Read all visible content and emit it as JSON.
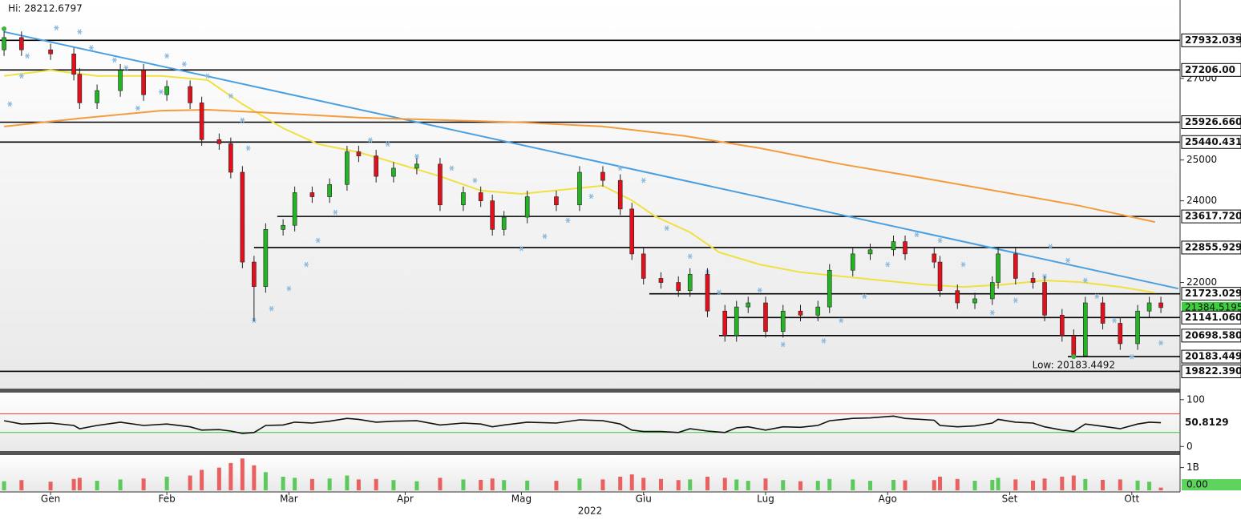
{
  "chart_data": [
    {
      "type": "candlestick",
      "x": [
        0,
        3,
        8,
        12,
        13,
        16,
        20,
        24,
        28,
        32,
        34,
        37,
        39,
        41,
        43,
        45,
        48,
        50,
        53,
        56,
        59,
        61,
        64,
        67,
        71,
        75,
        79,
        82,
        84,
        86,
        90,
        95,
        99,
        103,
        106,
        108,
        110,
        113,
        116,
        118,
        121,
        124,
        126,
        128,
        131,
        134,
        137,
        140,
        142,
        146,
        149,
        153,
        155,
        160,
        161,
        164,
        167,
        170,
        171,
        174,
        177,
        179,
        182,
        184,
        186,
        189,
        192,
        195,
        197,
        199
      ],
      "open": [
        27700,
        28000,
        27700,
        27600,
        27100,
        26400,
        26700,
        27200,
        26600,
        26800,
        26400,
        25500,
        25400,
        24700,
        22500,
        21900,
        23300,
        23400,
        24200,
        24100,
        24400,
        25200,
        25100,
        24600,
        24800,
        24900,
        23900,
        24200,
        24000,
        23300,
        23600,
        24100,
        23900,
        24700,
        24500,
        23800,
        22700,
        22100,
        22000,
        21800,
        22200,
        21300,
        20700,
        21400,
        21500,
        20800,
        21300,
        21200,
        21400,
        22300,
        22700,
        22800,
        23000,
        22700,
        22500,
        21800,
        21500,
        21600,
        22000,
        22700,
        22100,
        22000,
        21200,
        20700,
        20200,
        21500,
        21000,
        20500,
        21300,
        21500
      ],
      "high": [
        28212.6797,
        28150,
        27850,
        27750,
        27250,
        26850,
        27350,
        27350,
        26950,
        26950,
        26550,
        25650,
        25550,
        24850,
        22650,
        23450,
        23550,
        24350,
        24350,
        24550,
        25350,
        25350,
        25250,
        24950,
        25050,
        25050,
        24350,
        24350,
        24150,
        23750,
        24250,
        24250,
        24850,
        24850,
        24650,
        23950,
        22850,
        22250,
        22150,
        22350,
        22350,
        21450,
        21550,
        21650,
        21650,
        21450,
        21450,
        21550,
        22450,
        22850,
        22950,
        23150,
        23150,
        22850,
        22650,
        21950,
        21750,
        22150,
        22850,
        22850,
        22250,
        22150,
        21350,
        20850,
        21650,
        21650,
        21150,
        21450,
        21650,
        21650
      ],
      "low": [
        27550,
        27550,
        27450,
        26950,
        26250,
        26250,
        26550,
        26450,
        26450,
        26250,
        25350,
        25250,
        24550,
        22350,
        21050,
        21750,
        23150,
        23250,
        23950,
        23950,
        24250,
        24950,
        24450,
        24450,
        24650,
        23750,
        23750,
        23850,
        23150,
        23150,
        23450,
        23750,
        23750,
        24350,
        23650,
        22550,
        21950,
        21850,
        21650,
        21650,
        21150,
        20550,
        20550,
        21250,
        20650,
        20650,
        21050,
        21050,
        21250,
        22150,
        22550,
        22650,
        22550,
        22350,
        21650,
        21350,
        21350,
        21450,
        21850,
        21950,
        21850,
        21050,
        20550,
        20183.4492,
        20200,
        20850,
        20350,
        20350,
        21150,
        21250
      ],
      "close": [
        28000,
        27700,
        27600,
        27100,
        26400,
        26700,
        27200,
        26600,
        26800,
        26400,
        25500,
        25400,
        24700,
        22500,
        21900,
        23300,
        23400,
        24200,
        24100,
        24400,
        25200,
        25100,
        24600,
        24800,
        24900,
        23900,
        24200,
        24000,
        23300,
        23600,
        24100,
        23900,
        24700,
        24500,
        23800,
        22700,
        22100,
        22000,
        21800,
        22200,
        21300,
        20700,
        21400,
        21500,
        20800,
        21300,
        21200,
        21400,
        22300,
        22700,
        22800,
        23000,
        22700,
        22500,
        21800,
        21500,
        21600,
        22000,
        22700,
        22100,
        22000,
        21200,
        20700,
        20200,
        21500,
        21000,
        20500,
        21300,
        21500,
        21384.5195
      ],
      "up_color": "#22b422",
      "down_color": "#e3101b",
      "xlim": [
        -0.7,
        202.3
      ],
      "ylim": [
        19400,
        28920
      ],
      "yticks": [
        27000,
        25000,
        24000,
        22000
      ],
      "levels": [
        {
          "value": 27932.0391
        },
        {
          "value": 27206,
          "label": "27206.00"
        },
        {
          "value": 25926.6602
        },
        {
          "value": 25440.4316
        },
        {
          "value": 23617.7207,
          "x0": 47
        },
        {
          "value": 22855.9297,
          "x0": 43
        },
        {
          "value": 21723.0293,
          "x0": 111
        },
        {
          "value": 21141.0605,
          "x0": 124
        },
        {
          "value": 20698.5801,
          "x0": 123
        },
        {
          "value": 20183.4492,
          "x0": 183
        },
        {
          "value": 19822.3906
        }
      ],
      "lines": [
        {
          "color": "#4a9fe0",
          "x": [
            0,
            202
          ],
          "values": [
            28140,
            21850
          ]
        },
        {
          "color": "#f0e040",
          "x": [
            0,
            8,
            16,
            27,
            35,
            41,
            48,
            54,
            61,
            68,
            75,
            82,
            89,
            96,
            103,
            108,
            112,
            118,
            123,
            130,
            137,
            144,
            151,
            158,
            165,
            172,
            179,
            185,
            192,
            198
          ],
          "values": [
            27060,
            27200,
            27060,
            27060,
            26960,
            26370,
            25780,
            25390,
            25190,
            24900,
            24600,
            24250,
            24170,
            24270,
            24370,
            24010,
            23620,
            23230,
            22740,
            22440,
            22250,
            22150,
            22050,
            21950,
            21890,
            21950,
            22050,
            22010,
            21890,
            21750
          ]
        },
        {
          "color": "#f39c3c",
          "x": [
            0,
            13,
            27,
            35,
            48,
            61,
            75,
            89,
            103,
            117,
            130,
            144,
            158,
            172,
            185,
            198
          ],
          "values": [
            25820,
            26020,
            26210,
            26230,
            26140,
            26040,
            25980,
            25920,
            25820,
            25590,
            25290,
            24900,
            24560,
            24210,
            23880,
            23480
          ]
        }
      ],
      "sar": {
        "color": "#8ab8dc",
        "x": [
          1,
          3,
          4,
          9,
          13,
          15,
          19,
          21,
          23,
          27,
          28,
          31,
          35,
          39,
          41,
          42,
          43,
          46,
          49,
          52,
          54,
          57,
          59,
          63,
          66,
          71,
          77,
          81,
          89,
          93,
          97,
          101,
          106,
          110,
          114,
          118,
          121,
          123,
          130,
          134,
          141,
          144,
          148,
          152,
          157,
          161,
          165,
          170,
          174,
          179,
          180,
          183,
          186,
          188,
          191,
          194,
          199
        ],
        "values": [
          26370,
          27060,
          27550,
          28240,
          28140,
          27750,
          27450,
          27260,
          26270,
          26670,
          27550,
          27350,
          27060,
          26570,
          25980,
          25290,
          21070,
          21360,
          21850,
          22440,
          23030,
          23720,
          24600,
          25490,
          25390,
          25090,
          24800,
          24500,
          22830,
          23130,
          23520,
          24110,
          24800,
          24500,
          23330,
          22640,
          22250,
          21760,
          21810,
          20480,
          20570,
          21070,
          21660,
          22440,
          23170,
          23030,
          22440,
          21260,
          21560,
          22150,
          22880,
          22540,
          22050,
          21660,
          21070,
          20180,
          20520
        ]
      },
      "annotations": [
        {
          "text": "Hi: 28212.6797",
          "x": 0,
          "value": 28212.6797
        },
        {
          "text": "Low: 20183.4492",
          "x": 184,
          "value": 20183.4492
        }
      ],
      "annotation_color": "#3cb43c",
      "last_color": "#3ecf3e"
    },
    {
      "type": "line",
      "color": "#111111",
      "x": [
        0,
        3,
        8,
        12,
        13,
        16,
        20,
        24,
        28,
        32,
        34,
        37,
        39,
        41,
        43,
        45,
        48,
        50,
        53,
        56,
        59,
        61,
        64,
        67,
        71,
        75,
        79,
        82,
        84,
        86,
        90,
        95,
        99,
        103,
        106,
        108,
        110,
        113,
        116,
        118,
        121,
        124,
        126,
        128,
        131,
        134,
        137,
        140,
        142,
        146,
        149,
        153,
        155,
        160,
        161,
        164,
        167,
        170,
        171,
        174,
        177,
        179,
        182,
        184,
        186,
        189,
        192,
        195,
        197,
        199
      ],
      "values": [
        55,
        48,
        50,
        45,
        38,
        45,
        52,
        45,
        48,
        42,
        35,
        36,
        33,
        28,
        30,
        45,
        46,
        52,
        50,
        54,
        60,
        58,
        52,
        54,
        55,
        46,
        50,
        48,
        42,
        46,
        52,
        50,
        57,
        55,
        48,
        35,
        32,
        32,
        30,
        38,
        33,
        30,
        40,
        42,
        35,
        42,
        41,
        45,
        55,
        60,
        61,
        65,
        60,
        56,
        45,
        42,
        44,
        50,
        58,
        52,
        50,
        42,
        35,
        32,
        48,
        43,
        38,
        48,
        52,
        50.8129
      ],
      "bands": [
        {
          "value": 70,
          "color": "#e23b3b"
        },
        {
          "value": 30,
          "color": "#3cc43c"
        }
      ],
      "xlim": [
        -0.7,
        202.3
      ],
      "ylim": [
        -8,
        115
      ],
      "yticks": [
        0,
        100
      ]
    },
    {
      "type": "bar",
      "x": [
        0,
        3,
        8,
        12,
        13,
        16,
        20,
        24,
        28,
        32,
        34,
        37,
        39,
        41,
        43,
        45,
        48,
        50,
        53,
        56,
        59,
        61,
        64,
        67,
        71,
        75,
        79,
        82,
        84,
        86,
        90,
        95,
        99,
        103,
        106,
        108,
        110,
        113,
        116,
        118,
        121,
        124,
        126,
        128,
        131,
        134,
        137,
        140,
        142,
        146,
        149,
        153,
        155,
        160,
        161,
        164,
        167,
        170,
        171,
        174,
        177,
        179,
        182,
        184,
        186,
        189,
        192,
        195,
        197,
        199
      ],
      "values": [
        400000000,
        450000000,
        380000000,
        500000000,
        550000000,
        420000000,
        480000000,
        520000000,
        600000000,
        650000000,
        900000000,
        1000000000,
        1200000000,
        1400000000,
        1100000000,
        800000000,
        600000000,
        550000000,
        500000000,
        520000000,
        650000000,
        480000000,
        500000000,
        450000000,
        400000000,
        550000000,
        480000000,
        460000000,
        520000000,
        450000000,
        430000000,
        420000000,
        520000000,
        480000000,
        600000000,
        700000000,
        550000000,
        500000000,
        450000000,
        480000000,
        600000000,
        550000000,
        480000000,
        420000000,
        520000000,
        450000000,
        400000000,
        420000000,
        500000000,
        480000000,
        420000000,
        460000000,
        440000000,
        450000000,
        600000000,
        500000000,
        420000000,
        460000000,
        550000000,
        480000000,
        430000000,
        520000000,
        600000000,
        650000000,
        500000000,
        460000000,
        480000000,
        430000000,
        380000000,
        120000000
      ],
      "up_color": "#5cc95c",
      "down_color": "#e86060",
      "current": {
        "value": 0,
        "label": "0.00"
      },
      "current_color": "#5ed45e",
      "xlim": [
        -0.7,
        202.3
      ],
      "ylim": [
        0,
        1550000000
      ],
      "yticks": [
        {
          "value": 1000000000,
          "label": "1B"
        }
      ],
      "xticks": [
        {
          "value": 8,
          "label": "Gen"
        },
        {
          "value": 28,
          "label": "Feb"
        },
        {
          "value": 49,
          "label": "Mar"
        },
        {
          "value": 69,
          "label": "Apr"
        },
        {
          "value": 89,
          "label": "Mag"
        },
        {
          "value": 110,
          "label": "Giu"
        },
        {
          "value": 131,
          "label": "Lug"
        },
        {
          "value": 152,
          "label": "Ago"
        },
        {
          "value": 173,
          "label": "Set"
        },
        {
          "value": 194,
          "label": "Ott"
        }
      ],
      "xlabel": "2022"
    }
  ]
}
